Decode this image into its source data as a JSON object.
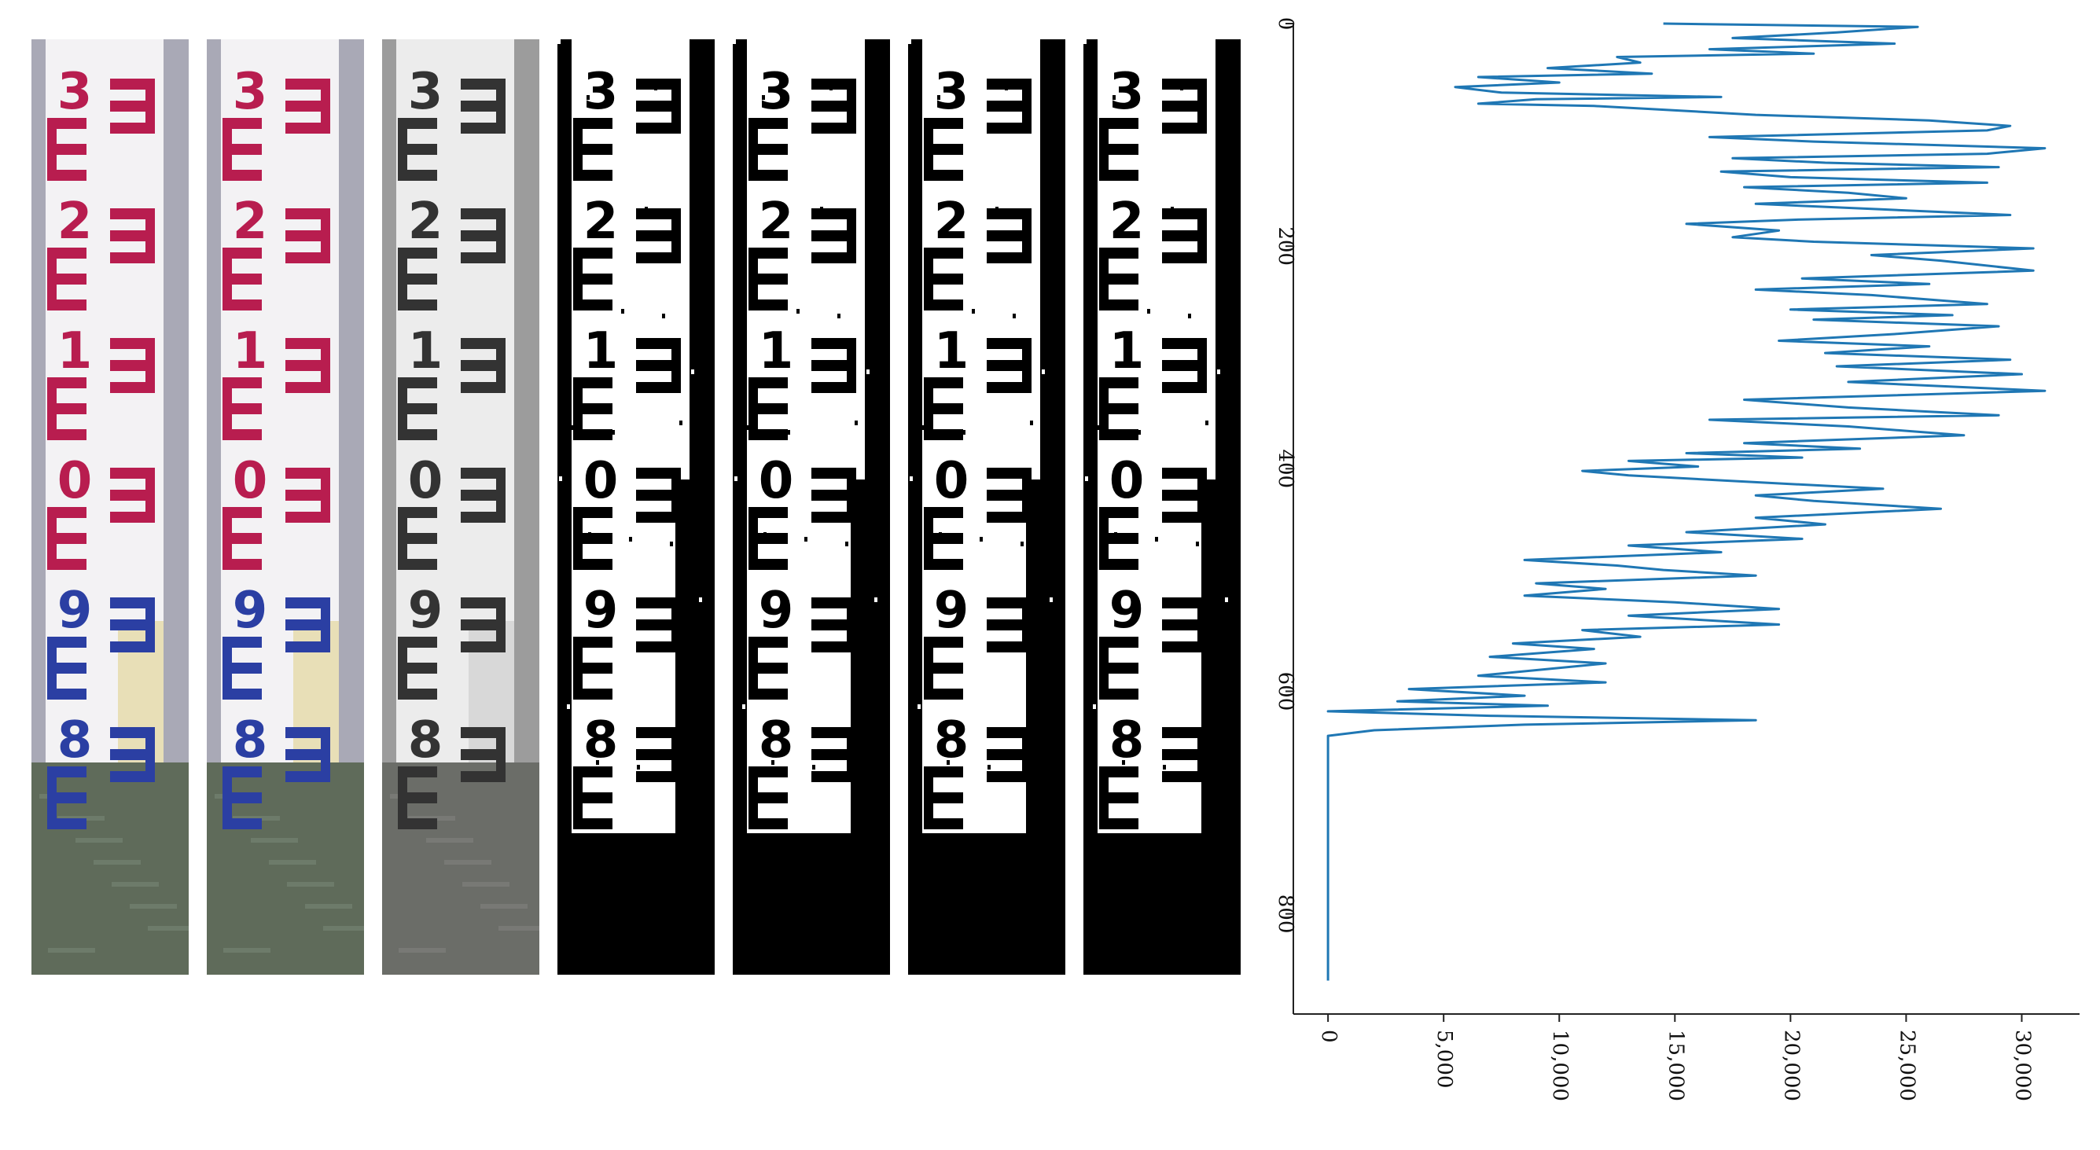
{
  "panels": [
    {
      "name": "original-color",
      "style": "color"
    },
    {
      "name": "color-enhanced",
      "style": "color"
    },
    {
      "name": "grayscale",
      "style": "gray"
    },
    {
      "name": "binary-1",
      "style": "binary"
    },
    {
      "name": "binary-2",
      "style": "binary"
    },
    {
      "name": "binary-3",
      "style": "binary"
    },
    {
      "name": "binary-4",
      "style": "binary"
    }
  ],
  "gauge_digits": [
    "3",
    "2",
    "1",
    "0",
    "9",
    "8"
  ],
  "colors": {
    "curve": "#1f77b4",
    "upper_marks": "#b81d4f",
    "lower_marks": "#2b3fa3",
    "axis": "#222222"
  },
  "chart_data": {
    "type": "line",
    "orientation": "vertical (x horizontal = pixel sum, y vertical = row, inverted)",
    "title": "",
    "xlabel": "",
    "ylabel": "",
    "xlim": [
      -1500,
      32500
    ],
    "ylim": [
      0,
      890
    ],
    "xticks": [
      0,
      5000,
      10000,
      15000,
      20000,
      25000,
      30000
    ],
    "xtick_labels": [
      "0",
      "5,000",
      "10,000",
      "15,000",
      "20,000",
      "25,000",
      "30,000"
    ],
    "yticks": [
      0,
      200,
      400,
      600,
      800
    ],
    "ytick_labels": [
      "0",
      "200",
      "400",
      "600",
      "800"
    ],
    "series": [
      {
        "points": [
          [
            14500,
            0
          ],
          [
            25500,
            3
          ],
          [
            22000,
            8
          ],
          [
            17500,
            13
          ],
          [
            24500,
            18
          ],
          [
            16500,
            23
          ],
          [
            21000,
            27
          ],
          [
            12500,
            30
          ],
          [
            13500,
            35
          ],
          [
            9500,
            40
          ],
          [
            14000,
            45
          ],
          [
            6500,
            48
          ],
          [
            10000,
            53
          ],
          [
            5500,
            57
          ],
          [
            7500,
            62
          ],
          [
            17000,
            66
          ],
          [
            9000,
            68
          ],
          [
            6500,
            72
          ],
          [
            11500,
            74
          ],
          [
            15000,
            78
          ],
          [
            18500,
            82
          ],
          [
            26000,
            87
          ],
          [
            29500,
            92
          ],
          [
            28500,
            96
          ],
          [
            16500,
            102
          ],
          [
            21000,
            106
          ],
          [
            31000,
            112
          ],
          [
            28500,
            117
          ],
          [
            17500,
            121
          ],
          [
            21500,
            125
          ],
          [
            29000,
            129
          ],
          [
            17000,
            133
          ],
          [
            20000,
            138
          ],
          [
            28500,
            143
          ],
          [
            18000,
            147
          ],
          [
            22500,
            152
          ],
          [
            25000,
            157
          ],
          [
            18500,
            162
          ],
          [
            24000,
            167
          ],
          [
            29500,
            172
          ],
          [
            20500,
            176
          ],
          [
            15500,
            180
          ],
          [
            19500,
            186
          ],
          [
            17500,
            192
          ],
          [
            21000,
            196
          ],
          [
            30500,
            202
          ],
          [
            23500,
            208
          ],
          [
            26500,
            213
          ],
          [
            30500,
            222
          ],
          [
            20500,
            229
          ],
          [
            26000,
            234
          ],
          [
            18500,
            239
          ],
          [
            23500,
            244
          ],
          [
            28500,
            252
          ],
          [
            20000,
            257
          ],
          [
            27000,
            262
          ],
          [
            21000,
            266
          ],
          [
            29000,
            272
          ],
          [
            24500,
            279
          ],
          [
            19500,
            285
          ],
          [
            26000,
            290
          ],
          [
            21500,
            296
          ],
          [
            29500,
            302
          ],
          [
            22000,
            308
          ],
          [
            30000,
            315
          ],
          [
            22500,
            322
          ],
          [
            31000,
            330
          ],
          [
            18000,
            338
          ],
          [
            22500,
            345
          ],
          [
            29000,
            352
          ],
          [
            16500,
            356
          ],
          [
            22500,
            362
          ],
          [
            27500,
            370
          ],
          [
            18000,
            377
          ],
          [
            23000,
            382
          ],
          [
            15500,
            386
          ],
          [
            20500,
            390
          ],
          [
            13000,
            393
          ],
          [
            16000,
            398
          ],
          [
            11000,
            402
          ],
          [
            13000,
            406
          ],
          [
            17500,
            411
          ],
          [
            24000,
            418
          ],
          [
            18500,
            424
          ],
          [
            21000,
            429
          ],
          [
            26500,
            436
          ],
          [
            18500,
            444
          ],
          [
            21500,
            450
          ],
          [
            15500,
            457
          ],
          [
            20500,
            463
          ],
          [
            13000,
            469
          ],
          [
            17000,
            475
          ],
          [
            8500,
            482
          ],
          [
            12500,
            487
          ],
          [
            14500,
            491
          ],
          [
            18500,
            496
          ],
          [
            9000,
            503
          ],
          [
            12000,
            508
          ],
          [
            8500,
            514
          ],
          [
            15000,
            520
          ],
          [
            19500,
            526
          ],
          [
            13000,
            532
          ],
          [
            19500,
            540
          ],
          [
            11000,
            545
          ],
          [
            13500,
            551
          ],
          [
            8000,
            557
          ],
          [
            11500,
            562
          ],
          [
            7000,
            569
          ],
          [
            12000,
            575
          ],
          [
            9500,
            580
          ],
          [
            6500,
            586
          ],
          [
            12000,
            592
          ],
          [
            3500,
            598
          ],
          [
            8500,
            604
          ],
          [
            3000,
            609
          ],
          [
            9500,
            613
          ],
          [
            0,
            618
          ],
          [
            7000,
            622
          ],
          [
            18500,
            626
          ],
          [
            8500,
            630
          ],
          [
            2000,
            635
          ],
          [
            0,
            640
          ],
          [
            0,
            860
          ]
        ]
      }
    ]
  }
}
